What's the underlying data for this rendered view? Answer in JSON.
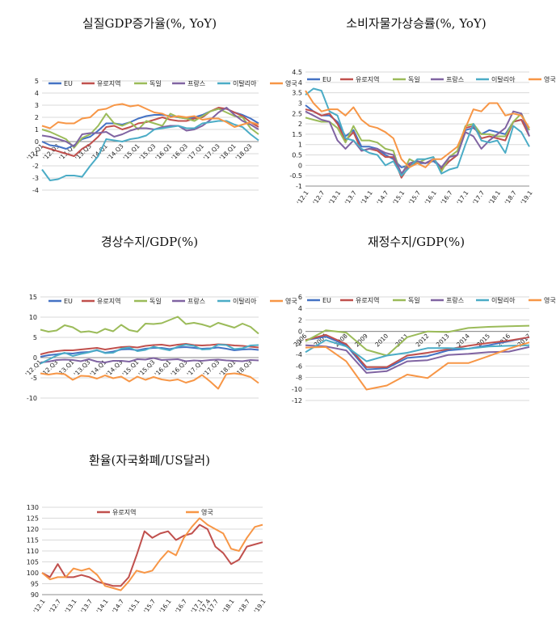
{
  "colors": {
    "EU": "#4472c4",
    "유로지역": "#c0504d",
    "독일": "#9bbb59",
    "프랑스": "#8064a2",
    "이탈리아": "#4bacc6",
    "영국": "#f79646"
  },
  "chart_data": [
    {
      "id": "gdp",
      "type": "line",
      "title": "실질GDP증가율(%, YoY)",
      "ylim": [
        -4,
        5
      ],
      "yticks": [
        5,
        4,
        3,
        2,
        1,
        0,
        -1,
        -2,
        -3,
        -4
      ],
      "legend": [
        "EU",
        "유로지역",
        "독일",
        "프랑스",
        "이탈리아",
        "영국"
      ],
      "categories": [
        "'12.Q1",
        "'12.Q2",
        "'12.Q3",
        "'12.Q4",
        "'13.Q1",
        "'13.Q2",
        "'13.Q3",
        "'13.Q4",
        "'14.Q1",
        "'14.Q2",
        "'14.Q3",
        "'14.Q4",
        "'15.Q1",
        "'15.Q2",
        "'15.Q3",
        "'15.Q4",
        "'16.Q1",
        "'16.Q2",
        "'16.Q3",
        "'16.Q4",
        "'17.Q1",
        "'17.Q2",
        "'17.Q3",
        "'17.Q4",
        "'18.Q1",
        "'18.Q2",
        "'18.Q3",
        "'18.Q4"
      ],
      "xticklabels": [
        "'12.Q1",
        "'12.Q3",
        "'13.Q1",
        "'13.Q3",
        "'14.Q1",
        "'14.Q3",
        "'15.Q1",
        "'15.Q3",
        "'16.Q1",
        "'16.Q3",
        "'17.Q1",
        "'17.Q3",
        "'18.Q1",
        "'18.Q3"
      ],
      "series": [
        {
          "name": "EU",
          "values": [
            0.0,
            -0.3,
            -0.4,
            -0.6,
            -0.3,
            0.2,
            0.4,
            0.9,
            1.5,
            1.5,
            1.4,
            1.6,
            1.9,
            2.1,
            2.2,
            2.2,
            2.1,
            2.0,
            1.9,
            2.0,
            2.2,
            2.5,
            2.7,
            2.7,
            2.4,
            2.2,
            1.9,
            1.5
          ]
        },
        {
          "name": "유로지역",
          "values": [
            -0.4,
            -0.6,
            -0.8,
            -1.0,
            -1.2,
            -0.6,
            -0.2,
            0.4,
            1.2,
            1.3,
            1.0,
            1.2,
            1.5,
            1.6,
            1.8,
            2.0,
            1.8,
            1.7,
            1.7,
            1.9,
            2.0,
            2.5,
            2.8,
            2.7,
            2.4,
            2.1,
            1.6,
            1.2
          ]
        },
        {
          "name": "독일",
          "values": [
            1.0,
            0.8,
            0.5,
            0.2,
            -0.5,
            0.3,
            0.6,
            1.3,
            2.3,
            1.5,
            1.3,
            1.6,
            1.0,
            1.7,
            1.5,
            1.3,
            2.3,
            2.0,
            1.9,
            1.7,
            2.1,
            2.5,
            2.7,
            2.4,
            2.1,
            2.0,
            1.1,
            0.6
          ]
        },
        {
          "name": "프랑스",
          "values": [
            0.5,
            0.4,
            0.2,
            0.0,
            -0.4,
            0.6,
            0.7,
            0.7,
            0.8,
            0.4,
            0.6,
            0.9,
            1.1,
            1.1,
            1.0,
            1.2,
            1.3,
            1.3,
            0.9,
            1.0,
            1.3,
            1.8,
            2.4,
            2.8,
            2.2,
            1.7,
            1.4,
            1.0
          ]
        },
        {
          "name": "이탈리아",
          "values": [
            -2.3,
            -3.2,
            -3.1,
            -2.8,
            -2.8,
            -2.9,
            -2.0,
            -1.2,
            0.2,
            0.1,
            0.0,
            0.2,
            0.3,
            0.5,
            1.0,
            1.1,
            1.2,
            1.3,
            1.1,
            1.1,
            1.5,
            1.6,
            1.7,
            1.7,
            1.4,
            1.2,
            0.6,
            0.1
          ]
        },
        {
          "name": "영국",
          "values": [
            1.3,
            1.1,
            1.6,
            1.5,
            1.5,
            1.9,
            2.0,
            2.6,
            2.7,
            3.0,
            3.1,
            2.9,
            3.0,
            2.7,
            2.4,
            2.3,
            2.0,
            2.1,
            2.0,
            2.1,
            1.8,
            1.9,
            1.9,
            1.6,
            1.2,
            1.4,
            1.6,
            1.4
          ]
        }
      ]
    },
    {
      "id": "cpi",
      "type": "line",
      "title": "소비자물가상승률(%, YoY)",
      "ylim": [
        -1,
        4.5
      ],
      "yticks": [
        4.5,
        4,
        3.5,
        3,
        2.5,
        2,
        1.5,
        1,
        0.5,
        0,
        -0.5,
        -1
      ],
      "legend": [
        "EU",
        "유로지역",
        "독일",
        "프랑스",
        "이탈리아",
        "영국"
      ],
      "categories": [
        "'12.1",
        "'12.4",
        "'12.7",
        "'12.10",
        "'13.1",
        "'13.4",
        "'13.7",
        "'13.10",
        "'14.1",
        "'14.4",
        "'14.7",
        "'14.10",
        "'15.1",
        "'15.4",
        "'15.7",
        "'15.10",
        "'16.1",
        "'16.4",
        "'16.7",
        "'16.10",
        "'17.1",
        "'17.4",
        "'17.7",
        "'17.10",
        "'18.1",
        "'18.4",
        "'18.7",
        "'18.10",
        "'19.1"
      ],
      "xticklabels": [
        "'12.1",
        "'12.7",
        "'13.1",
        "'13.7",
        "'14.1",
        "'14.7",
        "'15.1",
        "'15.7",
        "'16.1",
        "'16.7",
        "'17.1",
        "'17.7",
        "'18.1",
        "'18.7",
        "'19.1"
      ],
      "series": [
        {
          "name": "EU",
          "values": [
            2.9,
            2.6,
            2.4,
            2.4,
            2.1,
            1.4,
            1.7,
            0.9,
            0.9,
            0.8,
            0.5,
            0.3,
            -0.1,
            0.0,
            0.1,
            0.1,
            0.2,
            -0.1,
            0.2,
            0.5,
            1.7,
            1.8,
            1.5,
            1.7,
            1.6,
            1.5,
            2.1,
            2.2,
            1.7
          ]
        },
        {
          "name": "유로지역",
          "values": [
            2.7,
            2.6,
            2.4,
            2.5,
            2.0,
            1.2,
            1.6,
            0.7,
            0.8,
            0.7,
            0.4,
            0.4,
            -0.6,
            0.0,
            0.2,
            0.1,
            0.3,
            -0.2,
            0.2,
            0.5,
            1.8,
            1.9,
            1.3,
            1.4,
            1.3,
            1.2,
            2.1,
            2.2,
            1.4
          ]
        },
        {
          "name": "독일",
          "values": [
            2.3,
            2.2,
            2.1,
            2.1,
            1.8,
            1.1,
            1.9,
            1.2,
            1.2,
            1.1,
            0.8,
            0.7,
            -0.5,
            0.3,
            0.1,
            0.3,
            0.4,
            -0.3,
            0.4,
            0.7,
            1.9,
            2.0,
            1.5,
            1.5,
            1.4,
            1.4,
            2.1,
            2.5,
            1.7
          ]
        },
        {
          "name": "프랑스",
          "values": [
            2.6,
            2.4,
            2.2,
            2.1,
            1.2,
            0.8,
            1.2,
            0.7,
            0.8,
            0.8,
            0.6,
            0.5,
            -0.4,
            0.1,
            0.2,
            0.1,
            0.3,
            -0.1,
            0.4,
            0.5,
            1.6,
            1.4,
            0.8,
            1.2,
            1.5,
            1.8,
            2.6,
            2.5,
            1.4
          ]
        },
        {
          "name": "이탈리아",
          "values": [
            3.4,
            3.7,
            3.6,
            2.6,
            2.4,
            1.3,
            1.2,
            0.8,
            0.6,
            0.5,
            0.0,
            0.2,
            -0.5,
            -0.1,
            0.3,
            0.3,
            0.4,
            -0.4,
            -0.2,
            -0.1,
            1.0,
            2.0,
            1.2,
            1.1,
            1.2,
            0.6,
            1.9,
            1.6,
            0.9
          ]
        },
        {
          "name": "영국",
          "values": [
            3.6,
            3.0,
            2.6,
            2.7,
            2.7,
            2.4,
            2.8,
            2.2,
            1.9,
            1.8,
            1.6,
            1.3,
            0.3,
            -0.1,
            0.1,
            -0.1,
            0.3,
            0.3,
            0.6,
            0.9,
            1.8,
            2.7,
            2.6,
            3.0,
            3.0,
            2.4,
            2.5,
            2.4,
            1.8
          ]
        }
      ]
    },
    {
      "id": "ca",
      "type": "line",
      "title": "경상수지/GDP(%)",
      "ylim": [
        -10,
        15
      ],
      "yticks": [
        15,
        10,
        5,
        0,
        -5,
        -10
      ],
      "legend": [
        "EU",
        "유로지역",
        "독일",
        "프랑스",
        "이탈리아",
        "영국"
      ],
      "categories": [
        "'12.Q1",
        "'12.Q2",
        "'12.Q3",
        "'12.Q4",
        "'13.Q1",
        "'13.Q2",
        "'13.Q3",
        "'13.Q4",
        "'14.Q1",
        "'14.Q2",
        "'14.Q3",
        "'14.Q4",
        "'15.Q1",
        "'15.Q2",
        "'15.Q3",
        "'15.Q4",
        "'16.Q1",
        "'16.Q2",
        "'16.Q3",
        "'16.Q4",
        "'17.Q1",
        "'17.Q2",
        "'17.Q3",
        "'17.Q4",
        "'18.Q1",
        "'18.Q2",
        "'18.Q3",
        "'18.Q4"
      ],
      "xticklabels": [
        "'12.Q1",
        "'12.Q3",
        "'13.Q1",
        "'13.Q3",
        "'14.Q1",
        "'14.Q3",
        "'15.Q1",
        "'15.Q3",
        "'16.Q1",
        "'16.Q3",
        "'17.Q1",
        "'17.Q3",
        "'18.Q1",
        "'18.Q3"
      ],
      "series": [
        {
          "name": "EU",
          "values": [
            0.2,
            0.6,
            0.8,
            1.1,
            1.0,
            1.3,
            1.4,
            1.8,
            1.2,
            1.5,
            2.0,
            2.1,
            1.8,
            2.2,
            2.4,
            2.4,
            2.1,
            2.5,
            2.6,
            2.4,
            2.2,
            2.3,
            2.5,
            2.2,
            1.8,
            2.0,
            2.1,
            1.9
          ]
        },
        {
          "name": "유로지역",
          "values": [
            0.8,
            1.3,
            1.6,
            1.8,
            1.8,
            2.0,
            2.2,
            2.4,
            2.0,
            2.3,
            2.6,
            2.7,
            2.5,
            2.9,
            3.1,
            3.2,
            2.9,
            3.2,
            3.4,
            3.1,
            3.0,
            3.1,
            3.3,
            3.2,
            3.0,
            2.9,
            2.7,
            2.5
          ]
        },
        {
          "name": "독일",
          "values": [
            6.9,
            6.4,
            6.7,
            8.0,
            7.5,
            6.3,
            6.5,
            6.1,
            7.1,
            6.5,
            8.1,
            6.8,
            6.4,
            8.4,
            8.3,
            8.5,
            9.3,
            10.1,
            8.3,
            8.6,
            8.2,
            7.6,
            8.6,
            8.0,
            7.4,
            8.4,
            7.6,
            5.9
          ]
        },
        {
          "name": "프랑스",
          "values": [
            -1.2,
            -1.0,
            -0.6,
            -0.5,
            -0.6,
            -0.9,
            -0.4,
            -1.0,
            -1.2,
            -0.8,
            -0.8,
            -1.0,
            -0.4,
            -0.5,
            -0.1,
            -0.6,
            -0.5,
            -0.4,
            -0.9,
            -0.7,
            -0.8,
            -0.6,
            -0.5,
            -0.7,
            -0.8,
            -0.9,
            -0.6,
            -0.7
          ]
        },
        {
          "name": "이탈리아",
          "values": [
            -1.5,
            -0.5,
            0.5,
            1.2,
            0.4,
            0.9,
            1.3,
            1.9,
            1.1,
            1.2,
            2.2,
            2.5,
            1.6,
            1.9,
            2.7,
            2.2,
            1.8,
            2.7,
            3.2,
            2.9,
            2.0,
            2.1,
            3.2,
            3.1,
            2.1,
            2.3,
            3.0,
            3.1
          ]
        },
        {
          "name": "영국",
          "values": [
            -3.9,
            -4.2,
            -3.9,
            -4.1,
            -5.5,
            -4.5,
            -4.6,
            -5.2,
            -4.4,
            -5.1,
            -4.7,
            -5.9,
            -4.7,
            -5.5,
            -4.8,
            -5.4,
            -5.7,
            -5.4,
            -6.2,
            -5.6,
            -4.3,
            -5.9,
            -7.7,
            -4.1,
            -3.9,
            -4.2,
            -4.8,
            -6.3
          ]
        }
      ]
    },
    {
      "id": "fiscal",
      "type": "line",
      "title": "재정수지/GDP(%)",
      "ylim": [
        -12,
        6
      ],
      "yticks": [
        6,
        4,
        2,
        0,
        -2,
        -4,
        -6,
        -8,
        -10,
        -12
      ],
      "legend": [
        "EU",
        "유로지역",
        "독일",
        "프랑스",
        "이탈리아",
        "영국"
      ],
      "categories": [
        "2006",
        "2007",
        "2008",
        "2009",
        "2010",
        "2011",
        "2012",
        "2013",
        "2014",
        "2015",
        "2016",
        "2017"
      ],
      "xticklabels": [
        "2006",
        "2007",
        "2008",
        "2009",
        "2010",
        "2011",
        "2012",
        "2013",
        "2014",
        "2015",
        "2016",
        "2017"
      ],
      "series": [
        {
          "name": "EU",
          "values": [
            -1.5,
            -0.9,
            -2.4,
            -6.6,
            -6.4,
            -4.6,
            -4.3,
            -3.3,
            -3.0,
            -2.4,
            -1.7,
            -1.0
          ]
        },
        {
          "name": "유로지역",
          "values": [
            -1.5,
            -0.6,
            -2.2,
            -6.2,
            -6.2,
            -4.2,
            -3.7,
            -3.1,
            -2.5,
            -2.0,
            -1.6,
            -1.0
          ]
        },
        {
          "name": "독일",
          "values": [
            -1.7,
            0.2,
            -0.2,
            -3.2,
            -4.2,
            -1.0,
            0.0,
            -0.1,
            0.6,
            0.8,
            0.9,
            1.0
          ]
        },
        {
          "name": "프랑스",
          "values": [
            -2.4,
            -2.6,
            -3.3,
            -7.2,
            -6.9,
            -5.2,
            -5.0,
            -4.1,
            -3.9,
            -3.6,
            -3.5,
            -2.7
          ]
        },
        {
          "name": "이탈리아",
          "values": [
            -3.6,
            -1.5,
            -2.6,
            -5.2,
            -4.2,
            -3.7,
            -2.9,
            -2.9,
            -3.0,
            -2.6,
            -2.5,
            -2.4
          ]
        },
        {
          "name": "영국",
          "values": [
            -2.8,
            -2.7,
            -5.2,
            -10.1,
            -9.4,
            -7.5,
            -8.1,
            -5.5,
            -5.5,
            -4.3,
            -3.0,
            -1.9
          ]
        }
      ]
    },
    {
      "id": "fx",
      "type": "line",
      "title": "환율(자국화폐/US달러)",
      "ylim": [
        90,
        130
      ],
      "yticks": [
        130,
        125,
        120,
        115,
        110,
        105,
        100,
        95,
        90
      ],
      "legend": [
        "유로지역",
        "영국"
      ],
      "categories": [
        "'12.1",
        "'12.4",
        "'12.7",
        "'12.10",
        "'13.1",
        "'13.4",
        "'13.7",
        "'13.10",
        "'14.1",
        "'14.4",
        "'14.7",
        "'14.10",
        "'15.1",
        "'15.4",
        "'15.7",
        "'15.10",
        "'16.1",
        "'16.4",
        "'16.7",
        "'16.10",
        "'17.1",
        "'17.4",
        "'17.7",
        "'17.10",
        "'18.1",
        "'18.4",
        "'18.7",
        "'18.10",
        "'19.1"
      ],
      "xticklabels": [
        "'12.1",
        "'12.7",
        "'13.1",
        "'13.7",
        "'14.1",
        "'14.7",
        "'15.1",
        "'15.7",
        "'16.1",
        "'16.7",
        "'17.1",
        "'17.4",
        "'17.7",
        "'18.1",
        "'18.7",
        "'19.1"
      ],
      "series": [
        {
          "name": "유로지역",
          "values": [
            100,
            98,
            104,
            98,
            98,
            99,
            98,
            96,
            95,
            94,
            94,
            98,
            108,
            119,
            116,
            118,
            119,
            115,
            117,
            118,
            122,
            120,
            112,
            109,
            104,
            106,
            112,
            113,
            114
          ]
        },
        {
          "name": "영국",
          "values": [
            100,
            97,
            98,
            98,
            102,
            101,
            102,
            99,
            94,
            93,
            92,
            96,
            101,
            100,
            101,
            106,
            110,
            108,
            116,
            121,
            125,
            122,
            120,
            118,
            111,
            110,
            116,
            121,
            122
          ]
        }
      ]
    }
  ]
}
